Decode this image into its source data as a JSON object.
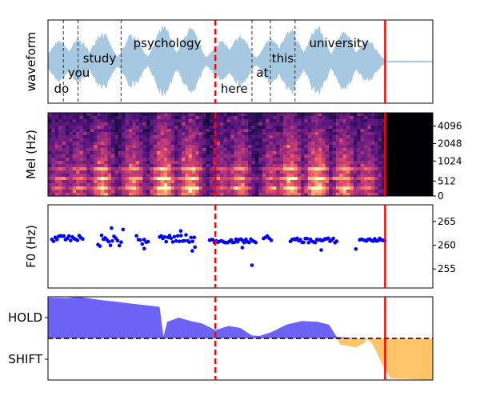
{
  "chart_data": [
    {
      "type": "area",
      "panel": "waveform",
      "ylabel": "waveform",
      "fill_color": "#a6c8e0",
      "duration": 1.0,
      "audio_end": 0.876,
      "words": [
        {
          "text": "do",
          "x": 0.035,
          "level": "bottom"
        },
        {
          "text": "you",
          "x": 0.08,
          "level": "mid"
        },
        {
          "text": "study",
          "x": 0.134,
          "level": "upper"
        },
        {
          "text": "psychology",
          "x": 0.31,
          "level": "top"
        },
        {
          "text": "here",
          "x": 0.484,
          "level": "bottom"
        },
        {
          "text": "at",
          "x": 0.557,
          "level": "mid"
        },
        {
          "text": "this",
          "x": 0.61,
          "level": "upper"
        },
        {
          "text": "university",
          "x": 0.756,
          "level": "top"
        }
      ],
      "word_boundaries": [
        0.04,
        0.078,
        0.19,
        0.53,
        0.578,
        0.642
      ],
      "markers": [
        {
          "x": 0.435,
          "style": "dashed",
          "color": "#ff0000"
        },
        {
          "x": 0.876,
          "style": "solid",
          "color": "#ff0000"
        }
      ]
    },
    {
      "type": "heatmap",
      "panel": "mel-spectrogram",
      "ylabel": "Mel (Hz)",
      "yticks": [
        0,
        512,
        1024,
        2048,
        4096
      ],
      "colormap": "magma",
      "audio_end": 0.876,
      "markers": [
        {
          "x": 0.435,
          "style": "dashed",
          "color": "#ff0000"
        },
        {
          "x": 0.876,
          "style": "solid",
          "color": "#ff0000"
        }
      ]
    },
    {
      "type": "scatter",
      "panel": "f0",
      "ylabel": "F0 (Hz)",
      "ylim": [
        251,
        268.5
      ],
      "yticks": [
        255,
        260,
        265
      ],
      "point_color": "#0000ff",
      "segments": [
        {
          "x_start": 0.01,
          "x_end": 0.09,
          "mean": 261.4,
          "spread": 0.6
        },
        {
          "x_start": 0.13,
          "x_end": 0.19,
          "mean": 261.0,
          "spread": 1.2
        },
        {
          "x_start": 0.23,
          "x_end": 0.26,
          "mean": 261.0,
          "spread": 1.0
        },
        {
          "x_start": 0.29,
          "x_end": 0.38,
          "mean": 261.3,
          "spread": 0.9
        },
        {
          "x_start": 0.42,
          "x_end": 0.54,
          "mean": 260.9,
          "spread": 0.4
        },
        {
          "x_start": 0.56,
          "x_end": 0.58,
          "mean": 261.5,
          "spread": 0.5
        },
        {
          "x_start": 0.63,
          "x_end": 0.75,
          "mean": 261.0,
          "spread": 0.5
        },
        {
          "x_start": 0.81,
          "x_end": 0.875,
          "mean": 261.1,
          "spread": 0.4
        }
      ],
      "outliers": [
        {
          "x": 0.165,
          "y": 263.6
        },
        {
          "x": 0.195,
          "y": 263.3
        },
        {
          "x": 0.25,
          "y": 259.3
        },
        {
          "x": 0.345,
          "y": 263.0
        },
        {
          "x": 0.375,
          "y": 258.8
        },
        {
          "x": 0.382,
          "y": 259.6
        },
        {
          "x": 0.505,
          "y": 259.5
        },
        {
          "x": 0.53,
          "y": 255.8
        },
        {
          "x": 0.71,
          "y": 259.0
        },
        {
          "x": 0.8,
          "y": 259.2
        }
      ],
      "markers": [
        {
          "x": 0.435,
          "style": "dashed",
          "color": "#ff0000"
        },
        {
          "x": 0.876,
          "style": "solid",
          "color": "#ff0000"
        }
      ]
    },
    {
      "type": "area",
      "panel": "turn-taking",
      "yticks": [
        "HOLD",
        "SHIFT"
      ],
      "ylim": [
        -1,
        1
      ],
      "baseline": 0,
      "hold_color": "#6c63f5",
      "shift_color": "#fdc46a",
      "hold_series": [
        [
          0.0,
          0.98
        ],
        [
          0.05,
          0.97
        ],
        [
          0.08,
          1.0
        ],
        [
          0.11,
          0.96
        ],
        [
          0.14,
          0.92
        ],
        [
          0.18,
          0.88
        ],
        [
          0.22,
          0.83
        ],
        [
          0.26,
          0.79
        ],
        [
          0.29,
          0.76
        ],
        [
          0.3,
          0.05
        ],
        [
          0.31,
          0.4
        ],
        [
          0.34,
          0.5
        ],
        [
          0.37,
          0.42
        ],
        [
          0.4,
          0.36
        ],
        [
          0.435,
          0.2
        ],
        [
          0.47,
          0.3
        ],
        [
          0.5,
          0.25
        ],
        [
          0.53,
          0.07
        ],
        [
          0.55,
          0.06
        ],
        [
          0.58,
          0.15
        ],
        [
          0.62,
          0.33
        ],
        [
          0.66,
          0.42
        ],
        [
          0.7,
          0.4
        ],
        [
          0.73,
          0.33
        ],
        [
          0.75,
          0.04
        ],
        [
          0.8,
          0.0
        ]
      ],
      "shift_series": [
        [
          0.75,
          0.0
        ],
        [
          0.76,
          -0.15
        ],
        [
          0.8,
          -0.22
        ],
        [
          0.82,
          -0.12
        ],
        [
          0.83,
          -0.02
        ],
        [
          0.84,
          -0.1
        ],
        [
          0.85,
          -0.25
        ],
        [
          0.87,
          -0.65
        ],
        [
          0.89,
          -0.96
        ],
        [
          0.95,
          -0.98
        ],
        [
          1.0,
          -1.0
        ]
      ],
      "markers": [
        {
          "x": 0.435,
          "style": "dashed",
          "color": "#ff0000"
        },
        {
          "x": 0.876,
          "style": "solid",
          "color": "#ff0000"
        }
      ]
    }
  ]
}
